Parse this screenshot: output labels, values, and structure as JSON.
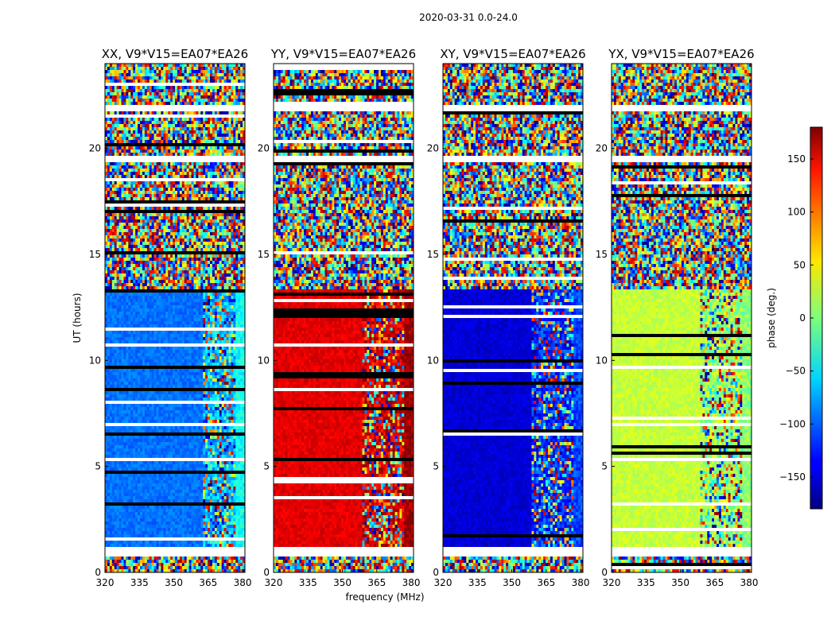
{
  "chart_data": {
    "type": "heatmap",
    "suptitle": "2020-03-31 0.0-24.0",
    "xlabel": "frequency (MHz)",
    "ylabel": "UT (hours)",
    "xlim": [
      320,
      381
    ],
    "ylim": [
      0,
      24
    ],
    "xticks": [
      "320",
      "335",
      "350",
      "365",
      "380"
    ],
    "xtick_values": [
      320,
      335,
      350,
      365,
      380
    ],
    "yticks": [
      "0",
      "5",
      "10",
      "15",
      "20"
    ],
    "ytick_values": [
      0,
      5,
      10,
      15,
      20
    ],
    "colorbar": {
      "label": "phase (deg.)",
      "range": [
        -180,
        180
      ],
      "ticks": [
        "−150",
        "−100",
        "−50",
        "0",
        "50",
        "100",
        "150"
      ],
      "tick_values": [
        -150,
        -100,
        -50,
        0,
        50,
        100,
        150
      ],
      "colormap": "jet"
    },
    "gaps_hours": [
      [
        0.8,
        1.2
      ],
      [
        19.4,
        19.7
      ],
      [
        21.8,
        22.1
      ],
      [
        13.45,
        13.55
      ]
    ],
    "panels": [
      {
        "title": "XX, V9*V15=EA07*EA26",
        "noise_hours": [
          [
            13.4,
            24.0
          ],
          [
            0.0,
            0.7
          ]
        ],
        "coherent_phase_deg": -95,
        "secondary_band_mhz": [
          363,
          377
        ],
        "secondary_phase_deg": -70,
        "edge_band_mhz": [
          377,
          381
        ],
        "edge_phase_deg": -40
      },
      {
        "title": "YY, V9*V15=EA07*EA26",
        "noise_hours": [
          [
            13.4,
            24.0
          ],
          [
            0.0,
            0.7
          ]
        ],
        "coherent_phase_deg": 145,
        "secondary_band_mhz": [
          359,
          377
        ],
        "secondary_phase_deg": 150,
        "edge_band_mhz": [
          377,
          381
        ],
        "edge_phase_deg": 170
      },
      {
        "title": "XY, V9*V15=EA07*EA26",
        "noise_hours": [
          [
            13.4,
            24.0
          ],
          [
            0.0,
            0.7
          ]
        ],
        "coherent_phase_deg": -150,
        "secondary_band_mhz": [
          359,
          381
        ],
        "secondary_phase_deg": -120,
        "edge_band_mhz": [
          377,
          381
        ],
        "edge_phase_deg": -110
      },
      {
        "title": "YX, V9*V15=EA07*EA26",
        "noise_hours": [
          [
            13.4,
            24.0
          ],
          [
            0.0,
            0.7
          ]
        ],
        "coherent_phase_deg": 25,
        "secondary_band_mhz": [
          359,
          381
        ],
        "secondary_phase_deg": 10,
        "edge_band_mhz": [
          377,
          381
        ],
        "edge_phase_deg": 5
      }
    ]
  }
}
